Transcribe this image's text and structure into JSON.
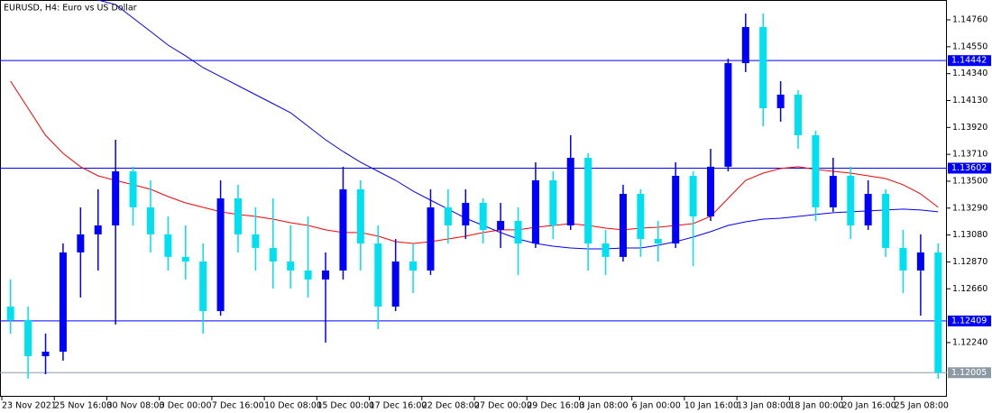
{
  "chart_data": {
    "type": "candlestick",
    "title": "EURUSD, H4:  Euro vs US Dollar",
    "categories": [
      "23 Nov 2021",
      null,
      null,
      "25 Nov 16:00",
      null,
      null,
      "30 Nov 08:00",
      null,
      null,
      "3 Dec 00:00",
      null,
      null,
      "7 Dec 16:00",
      null,
      null,
      "10 Dec 08:00",
      null,
      null,
      "15 Dec 00:00",
      null,
      null,
      "17 Dec 16:00",
      null,
      null,
      "22 Dec 08:00",
      null,
      null,
      "27 Dec 00:00",
      null,
      null,
      "29 Dec 16:00",
      null,
      null,
      "3 Jan 08:00",
      null,
      null,
      "6 Jan 00:00",
      null,
      null,
      "10 Jan 16:00",
      null,
      null,
      "13 Jan 08:00",
      null,
      null,
      "18 Jan 00:00",
      null,
      null,
      "20 Jan 16:00",
      null,
      null,
      "25 Jan 08:00",
      null,
      null
    ],
    "open": [
      1.12521,
      1.12416,
      1.12134,
      1.12169,
      1.12944,
      1.13085,
      1.13155,
      1.13577,
      1.13296,
      1.13085,
      1.12909,
      1.12873,
      1.12486,
      1.13366,
      1.13085,
      1.12979,
      1.12873,
      1.12803,
      1.12733,
      1.12803,
      1.13437,
      1.13014,
      1.12521,
      1.12873,
      1.12803,
      1.13296,
      1.13155,
      1.13331,
      1.1312,
      1.1319,
      1.13014,
      1.13507,
      1.13155,
      1.13683,
      1.13014,
      1.12909,
      1.13401,
      1.13049,
      1.13014,
      1.13542,
      1.13225,
      1.13613,
      1.14422,
      1.14704,
      1.1407,
      1.14176,
      1.13859,
      1.13296,
      1.13542,
      1.13155,
      1.13401,
      1.12979,
      1.12803,
      1.12944
    ],
    "high": [
      1.12733,
      1.12521,
      1.1231,
      1.13014,
      1.13296,
      1.13437,
      1.13824,
      1.13613,
      1.13507,
      1.13225,
      1.13155,
      1.13014,
      1.13507,
      1.13472,
      1.13296,
      1.13366,
      1.13155,
      1.13225,
      1.12944,
      1.13613,
      1.13507,
      1.13155,
      1.13049,
      1.13014,
      1.13437,
      1.13437,
      1.13437,
      1.13366,
      1.13331,
      1.13296,
      1.13648,
      1.13577,
      1.13859,
      1.13718,
      1.1312,
      1.13472,
      1.13437,
      1.1319,
      1.13648,
      1.13577,
      1.13753,
      1.14457,
      1.14809,
      1.14809,
      1.14281,
      1.14211,
      1.13894,
      1.13683,
      1.13613,
      1.13507,
      1.13437,
      1.1312,
      1.13085,
      1.13014
    ],
    "low": [
      1.1231,
      1.11958,
      1.11993,
      1.12099,
      1.12592,
      1.12803,
      1.12381,
      1.13155,
      1.12944,
      1.12803,
      1.12733,
      1.1231,
      1.12451,
      1.12944,
      1.12803,
      1.12662,
      1.12662,
      1.12592,
      1.1224,
      1.12733,
      1.12803,
      1.12345,
      1.12486,
      1.12627,
      1.12768,
      1.13014,
      1.13049,
      1.13014,
      1.12979,
      1.12768,
      1.12979,
      1.13049,
      1.1312,
      1.12803,
      1.12768,
      1.12873,
      1.12909,
      1.12873,
      1.12979,
      1.12838,
      1.1319,
      1.13577,
      1.14352,
      1.13929,
      1.13965,
      1.13753,
      1.1319,
      1.13261,
      1.13049,
      1.1312,
      1.12909,
      1.12627,
      1.12451,
      1.11958
    ],
    "close": [
      1.12416,
      1.12134,
      1.12169,
      1.12944,
      1.13085,
      1.13155,
      1.13577,
      1.13296,
      1.13085,
      1.12909,
      1.12873,
      1.12486,
      1.13366,
      1.13085,
      1.12979,
      1.12873,
      1.12803,
      1.12733,
      1.12803,
      1.13437,
      1.13014,
      1.12521,
      1.12873,
      1.12803,
      1.13296,
      1.13155,
      1.13331,
      1.1312,
      1.1319,
      1.13014,
      1.13507,
      1.13155,
      1.13683,
      1.13014,
      1.12909,
      1.13401,
      1.13049,
      1.13014,
      1.13542,
      1.13225,
      1.13613,
      1.14422,
      1.14704,
      1.1407,
      1.14176,
      1.13859,
      1.13296,
      1.13542,
      1.13155,
      1.13401,
      1.12979,
      1.12803,
      1.12944,
      1.12005
    ],
    "up_color": "#0000ff",
    "down_color": "#00e0f0",
    "lines": [
      {
        "color": "#ff0000",
        "values": [
          1.14281,
          1.1407,
          1.13859,
          1.13718,
          1.13613,
          1.13542,
          1.13507,
          1.13472,
          1.13437,
          1.1338,
          1.13331,
          1.13296,
          1.13261,
          1.1324,
          1.13225,
          1.13204,
          1.13176,
          1.13155,
          1.1312,
          1.13099,
          1.13099,
          1.13071,
          1.13028,
          1.13014,
          1.13028,
          1.13049,
          1.13071,
          1.13099,
          1.1312,
          1.1312,
          1.13141,
          1.13155,
          1.13169,
          1.13155,
          1.13134,
          1.1312,
          1.13134,
          1.13141,
          1.13155,
          1.13169,
          1.13225,
          1.13366,
          1.13507,
          1.13563,
          1.13599,
          1.13613,
          1.13592,
          1.13577,
          1.13563,
          1.13542,
          1.13521,
          1.13472,
          1.13401,
          1.13296
        ]
      },
      {
        "color": "#0000ff",
        "values": [
          null,
          null,
          null,
          null,
          null,
          1.14915,
          1.1488,
          1.14774,
          1.14669,
          1.14563,
          1.14479,
          1.14387,
          1.14317,
          1.14246,
          1.14176,
          1.14105,
          1.14035,
          1.13929,
          1.13824,
          1.13732,
          1.13648,
          1.13577,
          1.13507,
          1.13423,
          1.13352,
          1.13282,
          1.13211,
          1.13155,
          1.13099,
          1.13049,
          1.13014,
          1.12993,
          1.12979,
          1.12972,
          1.12972,
          1.12979,
          1.12979,
          1.13,
          1.13028,
          1.13064,
          1.13106,
          1.13155,
          1.13183,
          1.13204,
          1.13211,
          1.13225,
          1.1324,
          1.13254,
          1.13261,
          1.13268,
          1.13275,
          1.13282,
          1.13275,
          1.13261
        ]
      }
    ],
    "levels": [
      {
        "value": 1.14442,
        "color": "#0000ff"
      },
      {
        "value": 1.13602,
        "color": "#0000ff"
      },
      {
        "value": 1.12409,
        "color": "#0000ff"
      },
      {
        "value": 1.12005,
        "color": "#8c9aa6"
      }
    ],
    "ylim": [
      1.11817,
      1.14915
    ],
    "yticks": [
      {
        "value": 1.1476,
        "label": "1.14760"
      },
      {
        "value": 1.1455,
        "label": "1.14550"
      },
      {
        "value": 1.1434,
        "label": "1.14340"
      },
      {
        "value": 1.1413,
        "label": "1.14130"
      },
      {
        "value": 1.1392,
        "label": "1.13920"
      },
      {
        "value": 1.1371,
        "label": "1.13710"
      },
      {
        "value": 1.135,
        "label": "1.13500"
      },
      {
        "value": 1.1329,
        "label": "1.13290"
      },
      {
        "value": 1.1308,
        "label": "1.13080"
      },
      {
        "value": 1.1287,
        "label": "1.12870"
      },
      {
        "value": 1.1266,
        "label": "1.12660"
      },
      {
        "value": 1.1224,
        "label": "1.12240"
      }
    ]
  }
}
